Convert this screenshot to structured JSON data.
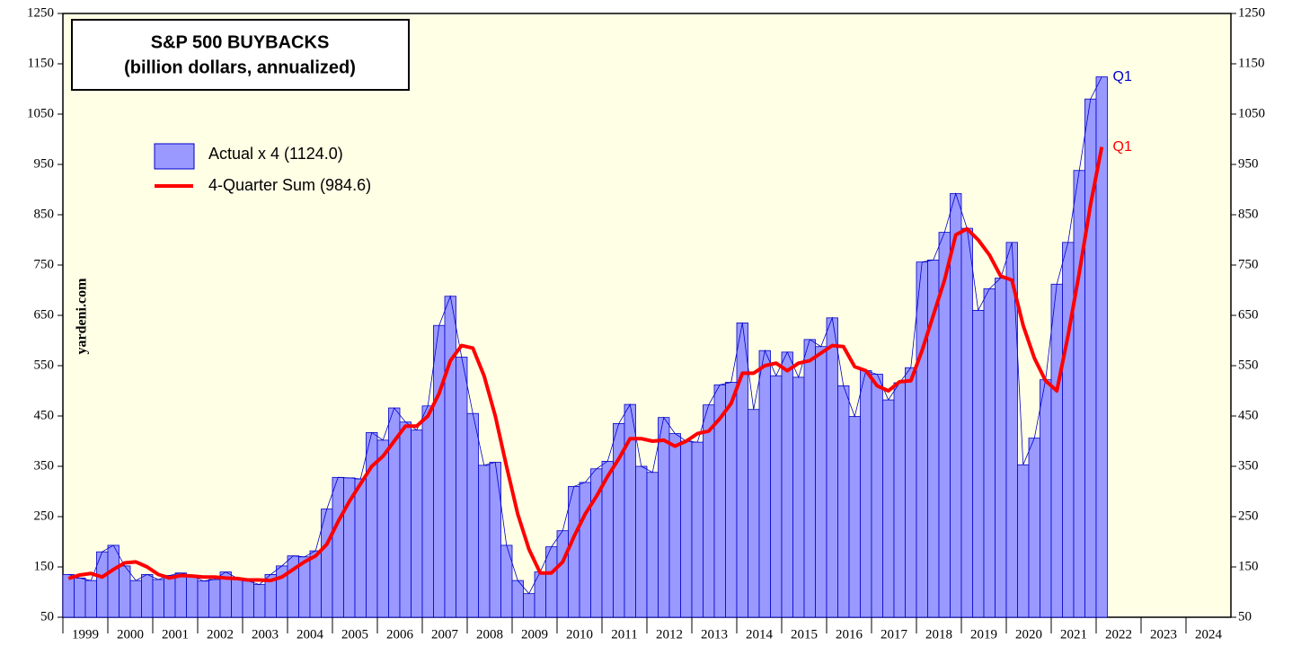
{
  "chart_data": {
    "type": "bar-line",
    "title": [
      "S&P 500 BUYBACKS",
      "(billion dollars, annualized)"
    ],
    "watermark": "yardeni.com",
    "x": [
      1999,
      1999.25,
      1999.5,
      1999.75,
      2000,
      2000.25,
      2000.5,
      2000.75,
      2001,
      2001.25,
      2001.5,
      2001.75,
      2002,
      2002.25,
      2002.5,
      2002.75,
      2003,
      2003.25,
      2003.5,
      2003.75,
      2004,
      2004.25,
      2004.5,
      2004.75,
      2005,
      2005.25,
      2005.5,
      2005.75,
      2006,
      2006.25,
      2006.5,
      2006.75,
      2007,
      2007.25,
      2007.5,
      2007.75,
      2008,
      2008.25,
      2008.5,
      2008.75,
      2009,
      2009.25,
      2009.5,
      2009.75,
      2010,
      2010.25,
      2010.5,
      2010.75,
      2011,
      2011.25,
      2011.5,
      2011.75,
      2012,
      2012.25,
      2012.5,
      2012.75,
      2013,
      2013.25,
      2013.5,
      2013.75,
      2014,
      2014.25,
      2014.5,
      2014.75,
      2015,
      2015.25,
      2015.5,
      2015.75,
      2016,
      2016.25,
      2016.5,
      2016.75,
      2017,
      2017.25,
      2017.5,
      2017.75,
      2018,
      2018.25,
      2018.5,
      2018.75,
      2019,
      2019.25,
      2019.5,
      2019.75,
      2020,
      2020.25,
      2020.5,
      2020.75,
      2021,
      2021.25,
      2021.5,
      2021.75,
      2022
    ],
    "series": [
      {
        "name": "Actual x 4 (1124.0)",
        "kind": "bar",
        "color": "#9999ff",
        "edge_color": "#0000cc",
        "end_label": "Q1",
        "values": [
          135,
          128,
          123,
          180,
          193,
          152,
          123,
          135,
          125,
          133,
          138,
          133,
          122,
          125,
          140,
          128,
          122,
          115,
          135,
          152,
          172,
          170,
          182,
          265,
          328,
          327,
          325,
          417,
          402,
          466,
          438,
          422,
          470,
          630,
          688,
          567,
          455,
          352,
          358,
          193,
          123,
          97,
          140,
          190,
          222,
          310,
          318,
          345,
          360,
          435,
          473,
          350,
          338,
          447,
          415,
          400,
          398,
          472,
          512,
          517,
          635,
          463,
          580,
          530,
          577,
          527,
          602,
          588,
          645,
          510,
          449,
          540,
          533,
          482,
          516,
          546,
          756,
          760,
          815,
          892,
          823,
          660,
          703,
          724,
          795,
          353,
          406,
          522,
          712,
          795,
          938,
          1080,
          1124
        ]
      },
      {
        "name": "4-Quarter Sum (984.6)",
        "kind": "line",
        "color": "#ff0000",
        "end_label": "Q1",
        "values": [
          127,
          134,
          137,
          130,
          145,
          158,
          160,
          150,
          135,
          128,
          133,
          132,
          130,
          130,
          128,
          127,
          124,
          124,
          123,
          130,
          145,
          160,
          172,
          195,
          240,
          280,
          315,
          350,
          370,
          400,
          430,
          430,
          450,
          495,
          560,
          590,
          585,
          530,
          450,
          350,
          255,
          185,
          138,
          138,
          160,
          210,
          255,
          290,
          330,
          365,
          405,
          405,
          400,
          402,
          390,
          400,
          415,
          420,
          445,
          475,
          535,
          535,
          550,
          555,
          540,
          555,
          560,
          575,
          590,
          588,
          548,
          540,
          510,
          500,
          518,
          520,
          580,
          650,
          720,
          810,
          822,
          800,
          770,
          728,
          720,
          630,
          565,
          520,
          500,
          610,
          735,
          870,
          984.6
        ]
      }
    ],
    "xlim": [
      1999,
      2025
    ],
    "xticks": [
      1999,
      2000,
      2001,
      2002,
      2003,
      2004,
      2005,
      2006,
      2007,
      2008,
      2009,
      2010,
      2011,
      2012,
      2013,
      2014,
      2015,
      2016,
      2017,
      2018,
      2019,
      2020,
      2021,
      2022,
      2023,
      2024
    ],
    "ylim": [
      50,
      1250
    ],
    "yticks": [
      50,
      150,
      250,
      350,
      450,
      550,
      650,
      750,
      850,
      950,
      1050,
      1150,
      1250
    ]
  }
}
